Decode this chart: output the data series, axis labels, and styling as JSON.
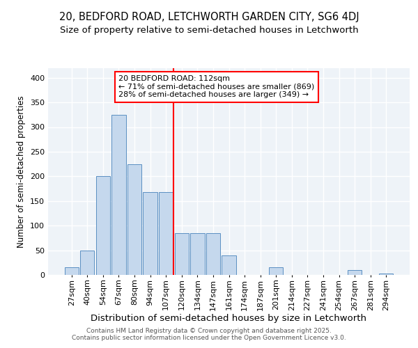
{
  "title1": "20, BEDFORD ROAD, LETCHWORTH GARDEN CITY, SG6 4DJ",
  "title2": "Size of property relative to semi-detached houses in Letchworth",
  "xlabel": "Distribution of semi-detached houses by size in Letchworth",
  "ylabel": "Number of semi-detached properties",
  "bin_labels": [
    "27sqm",
    "40sqm",
    "54sqm",
    "67sqm",
    "80sqm",
    "94sqm",
    "107sqm",
    "120sqm",
    "134sqm",
    "147sqm",
    "161sqm",
    "174sqm",
    "187sqm",
    "201sqm",
    "214sqm",
    "227sqm",
    "241sqm",
    "254sqm",
    "267sqm",
    "281sqm",
    "294sqm"
  ],
  "bar_heights": [
    15,
    50,
    200,
    325,
    225,
    168,
    168,
    85,
    85,
    85,
    40,
    0,
    0,
    15,
    0,
    0,
    0,
    0,
    10,
    0,
    3
  ],
  "bar_color": "#c5d8ed",
  "bar_edge_color": "#5a8fc2",
  "vline_pos": 6.5,
  "vline_color": "red",
  "annotation_text": "20 BEDFORD ROAD: 112sqm\n← 71% of semi-detached houses are smaller (869)\n28% of semi-detached houses are larger (349) →",
  "annotation_box_color": "white",
  "annotation_box_edge": "red",
  "bg_color": "#eef3f8",
  "grid_color": "white",
  "footer_text": "Contains HM Land Registry data © Crown copyright and database right 2025.\nContains public sector information licensed under the Open Government Licence v3.0.",
  "ylim": [
    0,
    420
  ],
  "yticks": [
    0,
    50,
    100,
    150,
    200,
    250,
    300,
    350,
    400
  ],
  "title1_fontsize": 10.5,
  "title2_fontsize": 9.5,
  "xlabel_fontsize": 9.5,
  "ylabel_fontsize": 8.5,
  "tick_fontsize": 8,
  "annot_fontsize": 8
}
